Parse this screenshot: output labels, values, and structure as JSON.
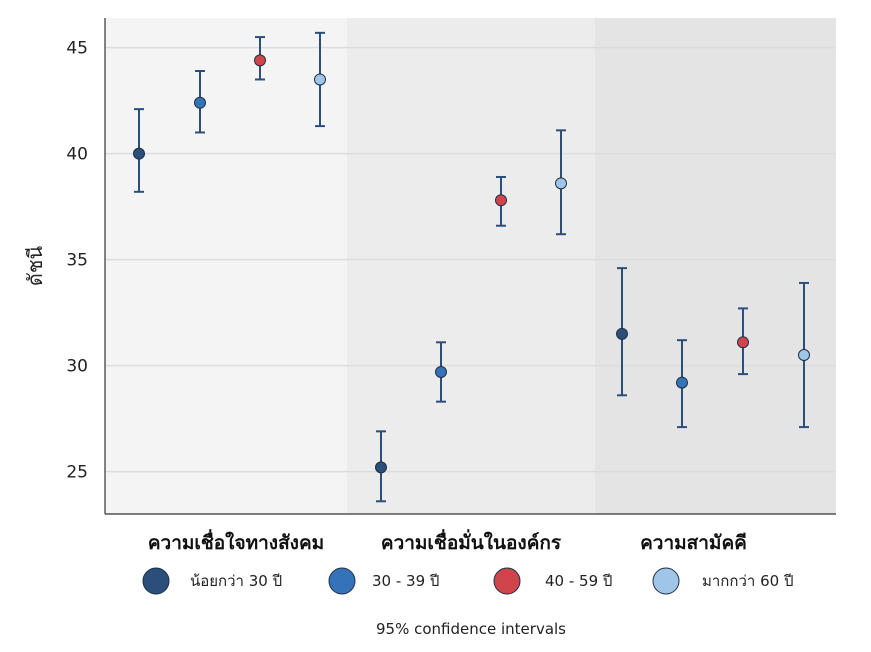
{
  "chart_data": {
    "type": "scatter",
    "ylabel": "ดัชนี",
    "ylim": [
      23,
      46.4
    ],
    "yticks": [
      25,
      30,
      35,
      40,
      45
    ],
    "groups": [
      "ความเชื่อใจทางสังคม",
      "ความเชื่อมั่นในองค์กร",
      "ความสามัคคี"
    ],
    "group_backgrounds": [
      "#f4f4f4",
      "#ececec",
      "#e4e4e4"
    ],
    "series": [
      {
        "name": "น้อยกว่า 30 ปี",
        "color": "#2b4f7a",
        "values": [
          40.0,
          25.2,
          31.5
        ],
        "lower": [
          38.2,
          23.6,
          28.6
        ],
        "upper": [
          42.1,
          26.9,
          34.6
        ]
      },
      {
        "name": "30 - 39 ปี",
        "color": "#3473b8",
        "values": [
          42.4,
          29.7,
          29.2
        ],
        "lower": [
          41.0,
          28.3,
          27.1
        ],
        "upper": [
          43.9,
          31.1,
          31.2
        ]
      },
      {
        "name": "40 - 59 ปี",
        "color": "#d0454b",
        "values": [
          44.4,
          37.8,
          31.1
        ],
        "lower": [
          43.5,
          36.6,
          29.6
        ],
        "upper": [
          45.5,
          38.9,
          32.7
        ]
      },
      {
        "name": "มากกว่า 60 ปี",
        "color": "#9fc5e8",
        "values": [
          43.5,
          38.6,
          30.5
        ],
        "lower": [
          41.3,
          36.2,
          27.1
        ],
        "upper": [
          45.7,
          41.1,
          33.9
        ]
      }
    ],
    "errorbar_color": "#2b4f7a",
    "caption": "95% confidence intervals",
    "grid": true,
    "legend_position": "bottom"
  }
}
